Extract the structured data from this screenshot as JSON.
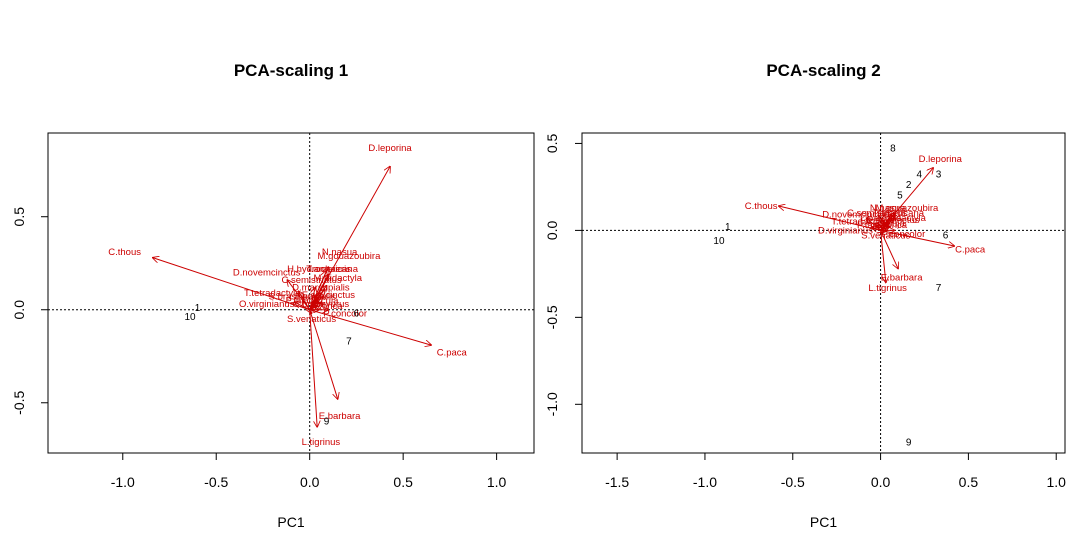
{
  "colors": {
    "axis": "#000000",
    "arrow": "#cc0000",
    "site": "#000000",
    "background": "#ffffff"
  },
  "chart_data": [
    {
      "type": "scatter",
      "title": "PCA-scaling 1",
      "xlabel": "PC1",
      "ylabel": "",
      "xlim": [
        -1.4,
        1.2
      ],
      "ylim": [
        -0.77,
        0.95
      ],
      "xticks": [
        "-1.0",
        "-0.5",
        "0.0",
        "0.5",
        "1.0"
      ],
      "yticks": [
        "-0.5",
        "0.0",
        "0.5"
      ],
      "zero_lines": true,
      "sites": [
        {
          "label": "1",
          "x": -0.6,
          "y": 0.01
        },
        {
          "label": "10",
          "x": -0.64,
          "y": -0.04
        },
        {
          "label": "6",
          "x": 0.25,
          "y": -0.02
        },
        {
          "label": "7",
          "x": 0.21,
          "y": -0.17
        },
        {
          "label": "9",
          "x": 0.09,
          "y": -0.6
        }
      ],
      "species": [
        {
          "name": "D.leporina",
          "x": 0.43,
          "y": 0.77,
          "lx": 0.43,
          "ly": 0.87
        },
        {
          "name": "C.thous",
          "x": -0.84,
          "y": 0.28,
          "lx": -0.99,
          "ly": 0.31
        },
        {
          "name": "C.paca",
          "x": 0.65,
          "y": -0.19,
          "lx": 0.76,
          "ly": -0.23
        },
        {
          "name": "E.barbara",
          "x": 0.15,
          "y": -0.48,
          "lx": 0.16,
          "ly": -0.57
        },
        {
          "name": "L.tigrinus",
          "x": 0.04,
          "y": -0.63,
          "lx": 0.06,
          "ly": -0.71
        },
        {
          "name": "D.novemcinctus",
          "x": -0.12,
          "y": 0.16,
          "lx": -0.23,
          "ly": 0.2
        },
        {
          "name": "O.virginianus",
          "x": -0.08,
          "y": 0.04,
          "lx": -0.23,
          "ly": 0.03
        },
        {
          "name": "T.tetradactyla",
          "x": -0.06,
          "y": 0.1,
          "lx": -0.2,
          "ly": 0.09
        },
        {
          "name": "S.venaticus",
          "x": 0.01,
          "y": -0.02,
          "lx": 0.01,
          "ly": -0.05
        },
        {
          "name": "M.gouazoubira",
          "x": 0.1,
          "y": 0.23,
          "lx": 0.21,
          "ly": 0.29
        },
        {
          "name": "P.concolor",
          "x": 0.1,
          "y": 0.0,
          "lx": 0.19,
          "ly": -0.02
        },
        {
          "name": "N.nasua",
          "x": 0.09,
          "y": 0.21,
          "lx": 0.16,
          "ly": 0.31
        },
        {
          "name": "T.americana",
          "x": 0.1,
          "y": 0.19,
          "lx": 0.12,
          "ly": 0.22
        },
        {
          "name": "M.tridactyla",
          "x": 0.09,
          "y": 0.13,
          "lx": 0.15,
          "ly": 0.17
        },
        {
          "name": "D.marsupialis",
          "x": 0.06,
          "y": 0.09,
          "lx": 0.06,
          "ly": 0.12
        },
        {
          "name": "P.onca",
          "x": 0.07,
          "y": 0.03,
          "lx": 0.1,
          "ly": 0.02
        },
        {
          "name": "E.sexcinctus",
          "x": 0.07,
          "y": 0.07,
          "lx": 0.1,
          "ly": 0.08
        },
        {
          "name": "L.pardalis",
          "x": 0.05,
          "y": 0.06,
          "lx": 0.03,
          "ly": 0.07
        },
        {
          "name": "C.semistriatus",
          "x": 0.03,
          "y": 0.12,
          "lx": 0.01,
          "ly": 0.16
        },
        {
          "name": "H.hydrochaeris",
          "x": 0.08,
          "y": 0.11,
          "lx": 0.05,
          "ly": 0.22
        },
        {
          "name": "P.tajacu",
          "x": 0.04,
          "y": 0.02,
          "lx": -0.04,
          "ly": 0.05
        },
        {
          "name": "S.brasiliensis",
          "x": 0.03,
          "y": 0.05,
          "lx": -0.07,
          "ly": 0.07
        },
        {
          "name": "G.cuja",
          "x": 0.06,
          "y": 0.04,
          "lx": 0.08,
          "ly": 0.05
        },
        {
          "name": "C.brachyurus",
          "x": 0.05,
          "y": 0.0,
          "lx": 0.06,
          "ly": 0.03
        }
      ]
    },
    {
      "type": "scatter",
      "title": "PCA-scaling 2",
      "xlabel": "PC1",
      "ylabel": "",
      "xlim": [
        -1.7,
        1.05
      ],
      "ylim": [
        -1.28,
        0.56
      ],
      "xticks": [
        "-1.5",
        "-1.0",
        "-0.5",
        "0.0",
        "0.5",
        "1.0"
      ],
      "yticks": [
        "-1.0",
        "-0.5",
        "0.0",
        "0.5"
      ],
      "zero_lines": true,
      "sites": [
        {
          "label": "8",
          "x": 0.07,
          "y": 0.47
        },
        {
          "label": "4",
          "x": 0.22,
          "y": 0.32
        },
        {
          "label": "3",
          "x": 0.33,
          "y": 0.32
        },
        {
          "label": "2",
          "x": 0.16,
          "y": 0.26
        },
        {
          "label": "5",
          "x": 0.11,
          "y": 0.2
        },
        {
          "label": "1",
          "x": -0.87,
          "y": 0.02
        },
        {
          "label": "10",
          "x": -0.92,
          "y": -0.06
        },
        {
          "label": "6",
          "x": 0.37,
          "y": -0.03
        },
        {
          "label": "7",
          "x": 0.33,
          "y": -0.33
        },
        {
          "label": "9",
          "x": 0.16,
          "y": -1.22
        }
      ],
      "species": [
        {
          "name": "D.leporina",
          "x": 0.3,
          "y": 0.36,
          "lx": 0.34,
          "ly": 0.41
        },
        {
          "name": "C.thous",
          "x": -0.58,
          "y": 0.14,
          "lx": -0.68,
          "ly": 0.14
        },
        {
          "name": "C.paca",
          "x": 0.42,
          "y": -0.09,
          "lx": 0.51,
          "ly": -0.11
        },
        {
          "name": "E.barbara",
          "x": 0.1,
          "y": -0.22,
          "lx": 0.12,
          "ly": -0.27
        },
        {
          "name": "L.tigrinus",
          "x": 0.03,
          "y": -0.3,
          "lx": 0.04,
          "ly": -0.33
        },
        {
          "name": "D.novemcinctus",
          "x": -0.08,
          "y": 0.07,
          "lx": -0.14,
          "ly": 0.09
        },
        {
          "name": "D.virginianus",
          "x": -0.05,
          "y": 0.02,
          "lx": -0.2,
          "ly": 0.0
        },
        {
          "name": "S.venaticus",
          "x": 0.02,
          "y": -0.01,
          "lx": 0.03,
          "ly": -0.03
        },
        {
          "name": "M.gouazoubira",
          "x": 0.08,
          "y": 0.1,
          "lx": 0.15,
          "ly": 0.13
        },
        {
          "name": "P.concolor",
          "x": 0.08,
          "y": 0.0,
          "lx": 0.13,
          "ly": -0.02
        },
        {
          "name": "T.americana",
          "x": 0.08,
          "y": 0.08,
          "lx": 0.1,
          "ly": 0.1
        },
        {
          "name": "N.nasua",
          "x": 0.06,
          "y": 0.09,
          "lx": 0.04,
          "ly": 0.13
        },
        {
          "name": "M.tridactyla",
          "x": 0.07,
          "y": 0.06,
          "lx": 0.12,
          "ly": 0.07
        },
        {
          "name": "T.tetradactyla",
          "x": -0.03,
          "y": 0.04,
          "lx": -0.12,
          "ly": 0.05
        },
        {
          "name": "P.onca",
          "x": 0.05,
          "y": 0.02,
          "lx": 0.07,
          "ly": 0.03
        },
        {
          "name": "E.sexcinctus",
          "x": 0.05,
          "y": 0.04,
          "lx": 0.07,
          "ly": 0.06
        },
        {
          "name": "L.pardalis",
          "x": 0.04,
          "y": 0.05,
          "lx": 0.0,
          "ly": 0.07
        },
        {
          "name": "C.semistriatus",
          "x": 0.02,
          "y": 0.06,
          "lx": -0.02,
          "ly": 0.1
        },
        {
          "name": "P.tajacu",
          "x": 0.03,
          "y": 0.01,
          "lx": -0.04,
          "ly": 0.03
        },
        {
          "name": "G.cuja",
          "x": 0.04,
          "y": 0.03,
          "lx": 0.06,
          "ly": 0.04
        }
      ]
    }
  ]
}
